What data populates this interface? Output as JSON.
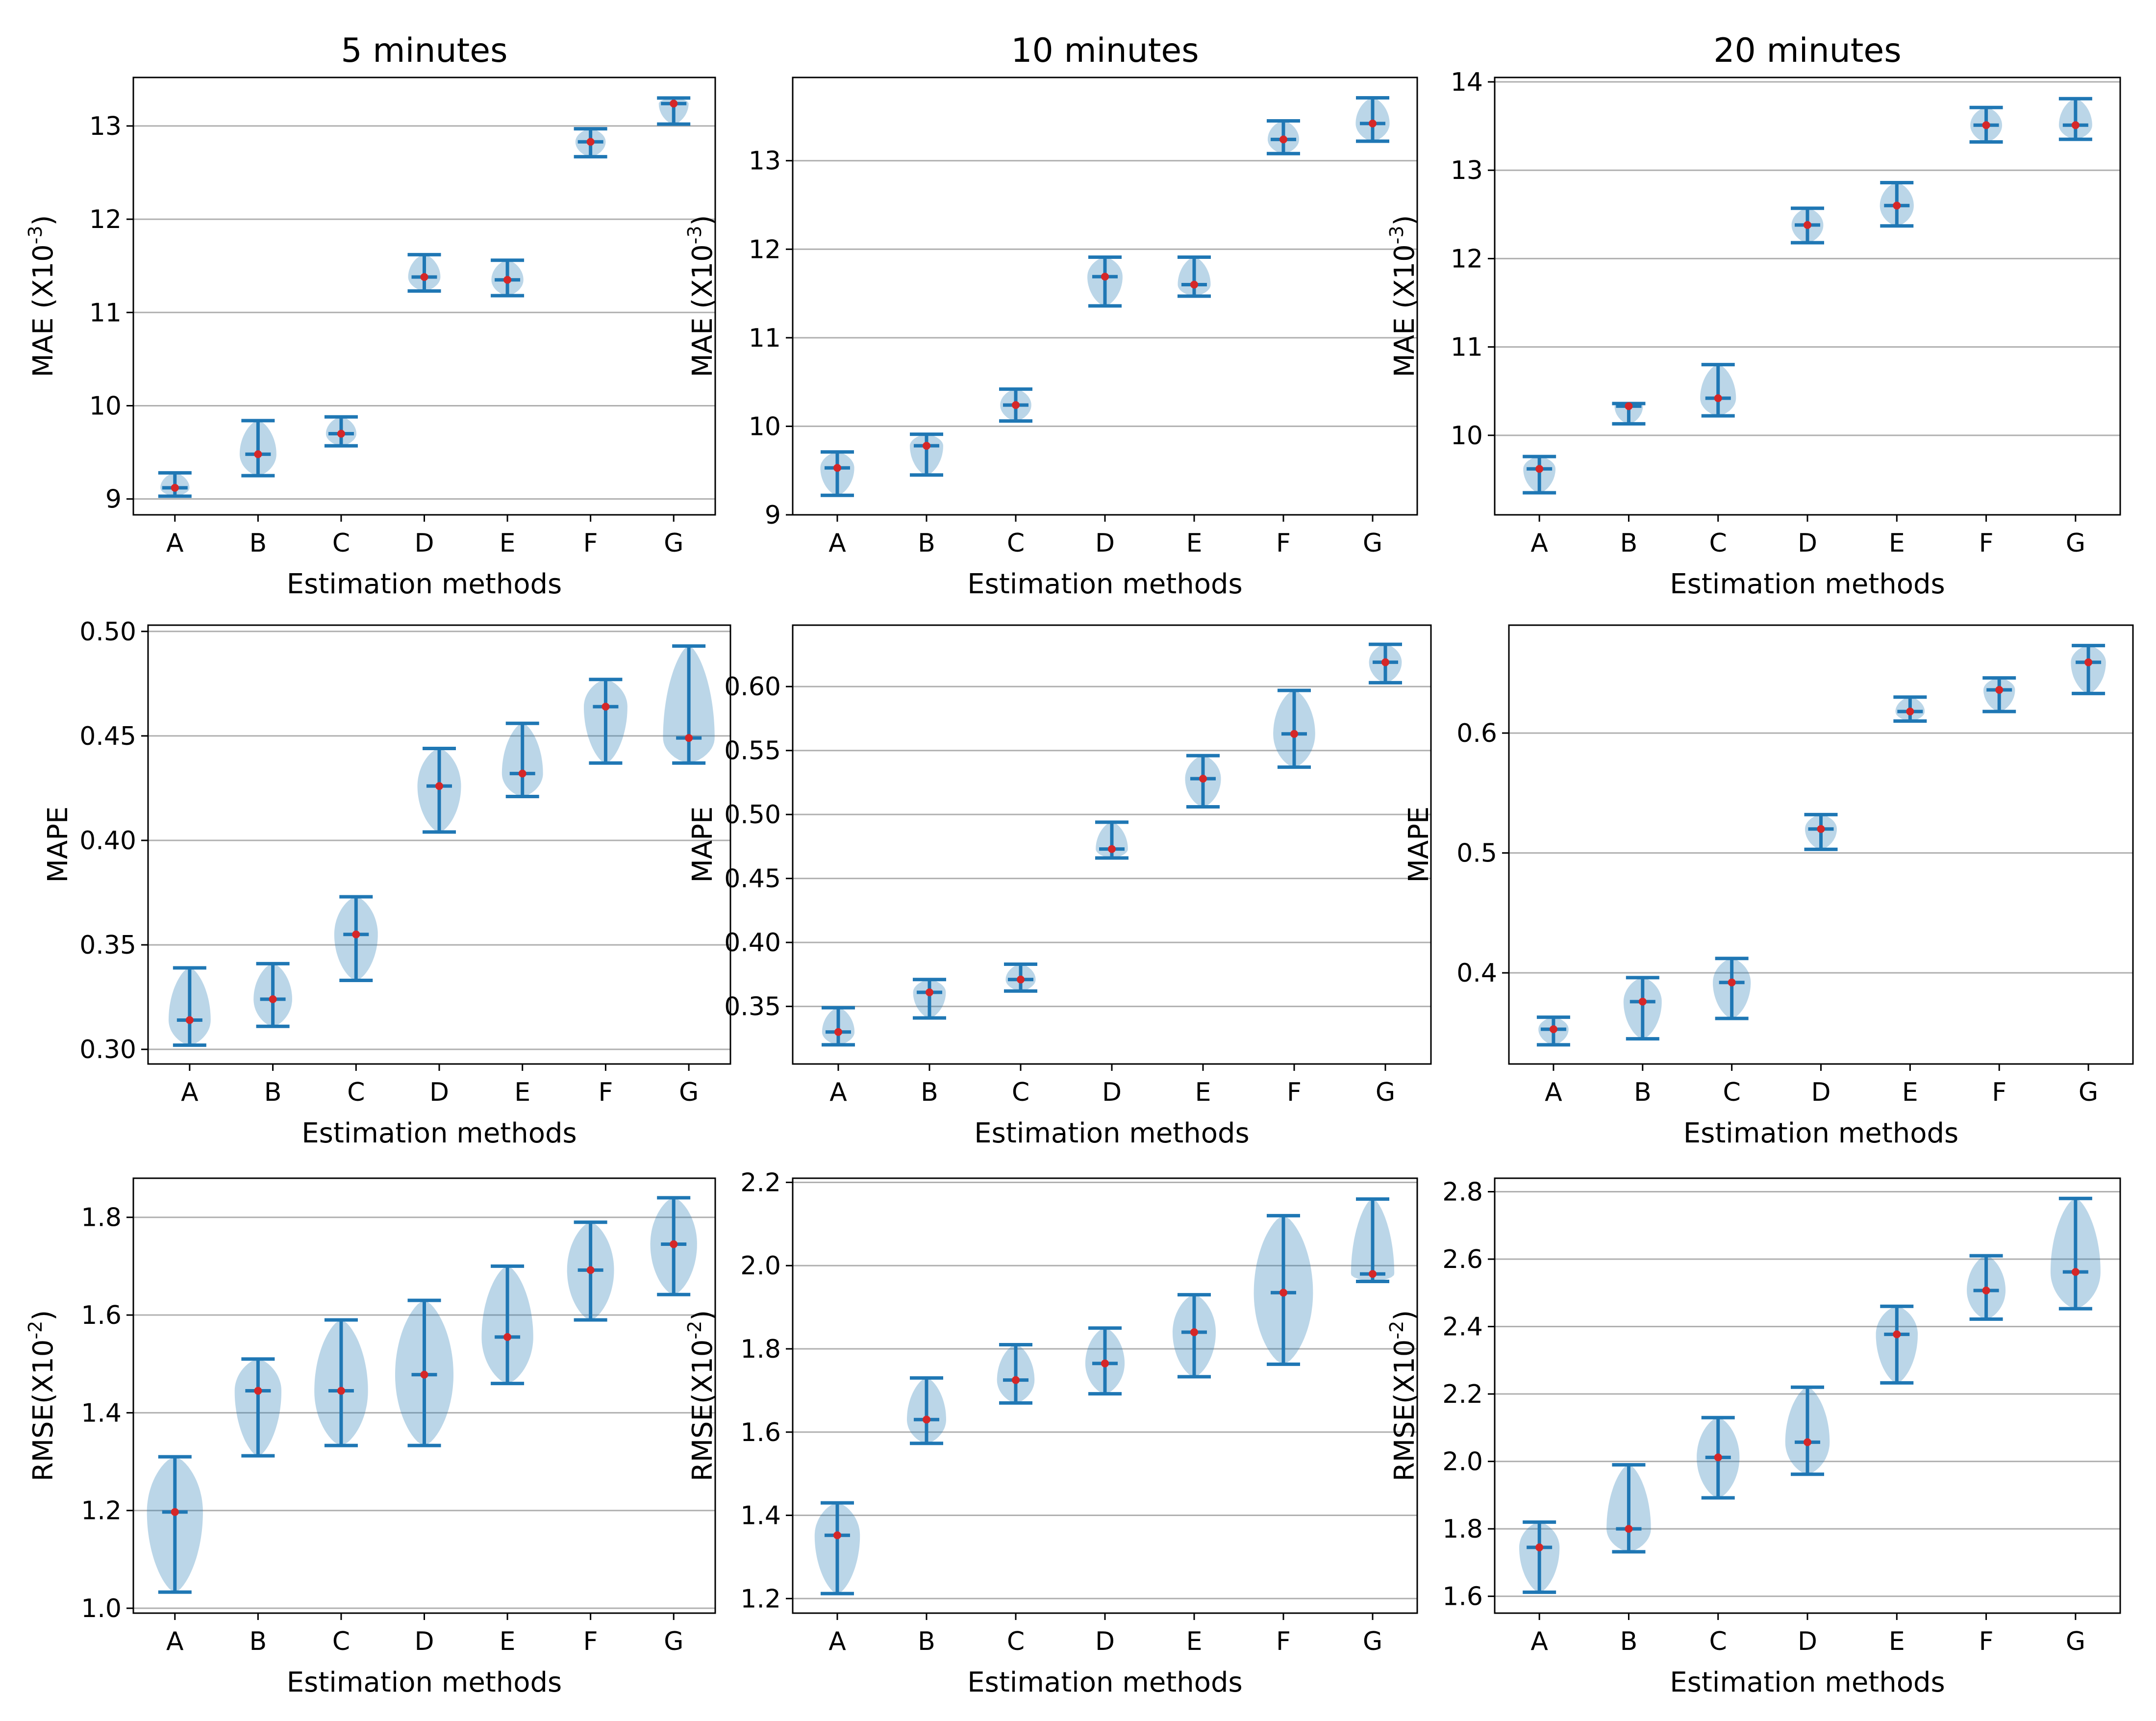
{
  "colors": {
    "violin": "#1f77b4",
    "median_dot": "#d62728",
    "grid": "#b0b0b0"
  },
  "chart_data": [
    {
      "type": "violin",
      "id": "mae-5",
      "title": "5 minutes",
      "xlabel": "Estimation methods",
      "ylabel": "MAE (X10",
      "ylabel_exp": "-3",
      "ylabel_suffix": ")",
      "categories": [
        "A",
        "B",
        "C",
        "D",
        "E",
        "F",
        "G"
      ],
      "yticks": [
        9,
        10,
        11,
        12,
        13
      ],
      "ytick_labels": [
        "9",
        "10",
        "11",
        "12",
        "13"
      ],
      "ylim": [
        8.83,
        13.52
      ],
      "median": [
        9.12,
        9.48,
        9.7,
        11.38,
        11.35,
        12.83,
        13.24
      ],
      "min": [
        9.03,
        9.25,
        9.57,
        11.23,
        11.18,
        12.67,
        13.02
      ],
      "max": [
        9.28,
        9.84,
        9.88,
        11.62,
        11.56,
        12.97,
        13.3
      ]
    },
    {
      "type": "violin",
      "id": "mae-10",
      "title": "10 minutes",
      "xlabel": "Estimation methods",
      "ylabel": "MAE (X10",
      "ylabel_exp": "-3",
      "ylabel_suffix": ")",
      "categories": [
        "A",
        "B",
        "C",
        "D",
        "E",
        "F",
        "G"
      ],
      "yticks": [
        9,
        10,
        11,
        12,
        13
      ],
      "ytick_labels": [
        "9",
        "10",
        "11",
        "12",
        "13"
      ],
      "ylim": [
        9.0,
        13.94
      ],
      "median": [
        9.53,
        9.78,
        10.24,
        11.69,
        11.6,
        13.24,
        13.42
      ],
      "min": [
        9.22,
        9.45,
        10.06,
        11.36,
        11.47,
        13.08,
        13.22
      ],
      "max": [
        9.71,
        9.91,
        10.42,
        11.91,
        11.91,
        13.45,
        13.71
      ]
    },
    {
      "type": "violin",
      "id": "mae-20",
      "title": "20 minutes",
      "xlabel": "Estimation methods",
      "ylabel": "MAE (X10",
      "ylabel_exp": "-3",
      "ylabel_suffix": ")",
      "categories": [
        "A",
        "B",
        "C",
        "D",
        "E",
        "F",
        "G"
      ],
      "yticks": [
        10,
        11,
        12,
        13,
        14
      ],
      "ytick_labels": [
        "10",
        "11",
        "12",
        "13",
        "14"
      ],
      "ylim": [
        9.1,
        14.05
      ],
      "median": [
        9.62,
        10.33,
        10.42,
        12.38,
        12.6,
        13.51,
        13.51
      ],
      "min": [
        9.35,
        10.13,
        10.22,
        12.18,
        12.37,
        13.32,
        13.35
      ],
      "max": [
        9.76,
        10.36,
        10.8,
        12.57,
        12.86,
        13.71,
        13.81
      ]
    },
    {
      "type": "violin",
      "id": "mape-5",
      "title": "",
      "xlabel": "Estimation methods",
      "ylabel": "MAPE",
      "ylabel_exp": "",
      "ylabel_suffix": "",
      "categories": [
        "A",
        "B",
        "C",
        "D",
        "E",
        "F",
        "G"
      ],
      "yticks": [
        0.3,
        0.35,
        0.4,
        0.45,
        0.5
      ],
      "ytick_labels": [
        "0.30",
        "0.35",
        "0.40",
        "0.45",
        "0.50"
      ],
      "ylim": [
        0.293,
        0.503
      ],
      "median": [
        0.314,
        0.324,
        0.355,
        0.426,
        0.432,
        0.464,
        0.449
      ],
      "min": [
        0.302,
        0.311,
        0.333,
        0.404,
        0.421,
        0.437,
        0.437
      ],
      "max": [
        0.339,
        0.341,
        0.373,
        0.444,
        0.456,
        0.477,
        0.493
      ]
    },
    {
      "type": "violin",
      "id": "mape-10",
      "title": "",
      "xlabel": "Estimation methods",
      "ylabel": "MAPE",
      "ylabel_exp": "",
      "ylabel_suffix": "",
      "categories": [
        "A",
        "B",
        "C",
        "D",
        "E",
        "F",
        "G"
      ],
      "yticks": [
        0.35,
        0.4,
        0.45,
        0.5,
        0.55,
        0.6
      ],
      "ytick_labels": [
        "0.35",
        "0.40",
        "0.45",
        "0.50",
        "0.55",
        "0.60"
      ],
      "ylim": [
        0.305,
        0.648
      ],
      "median": [
        0.33,
        0.361,
        0.371,
        0.473,
        0.528,
        0.563,
        0.619
      ],
      "min": [
        0.32,
        0.341,
        0.362,
        0.466,
        0.506,
        0.537,
        0.603
      ],
      "max": [
        0.349,
        0.371,
        0.383,
        0.494,
        0.546,
        0.597,
        0.633
      ]
    },
    {
      "type": "violin",
      "id": "mape-20",
      "title": "",
      "xlabel": "Estimation methods",
      "ylabel": "MAPE",
      "ylabel_exp": "",
      "ylabel_suffix": "",
      "categories": [
        "A",
        "B",
        "C",
        "D",
        "E",
        "F",
        "G"
      ],
      "yticks": [
        0.4,
        0.5,
        0.6
      ],
      "ytick_labels": [
        "0.4",
        "0.5",
        "0.6"
      ],
      "ylim": [
        0.324,
        0.69
      ],
      "median": [
        0.353,
        0.376,
        0.392,
        0.52,
        0.618,
        0.636,
        0.659
      ],
      "min": [
        0.34,
        0.345,
        0.362,
        0.503,
        0.61,
        0.618,
        0.633
      ],
      "max": [
        0.363,
        0.396,
        0.412,
        0.532,
        0.63,
        0.646,
        0.673
      ]
    },
    {
      "type": "violin",
      "id": "rmse-5",
      "title": "",
      "xlabel": "Estimation methods",
      "ylabel": "RMSE(X10",
      "ylabel_exp": "-2",
      "ylabel_suffix": ")",
      "categories": [
        "A",
        "B",
        "C",
        "D",
        "E",
        "F",
        "G"
      ],
      "yticks": [
        1.0,
        1.2,
        1.4,
        1.6,
        1.8
      ],
      "ytick_labels": [
        "1.0",
        "1.2",
        "1.4",
        "1.6",
        "1.8"
      ],
      "ylim": [
        0.99,
        1.88
      ],
      "median": [
        1.197,
        1.445,
        1.445,
        1.478,
        1.555,
        1.692,
        1.745
      ],
      "min": [
        1.033,
        1.312,
        1.333,
        1.333,
        1.46,
        1.59,
        1.642
      ],
      "max": [
        1.31,
        1.51,
        1.59,
        1.63,
        1.7,
        1.79,
        1.84
      ]
    },
    {
      "type": "violin",
      "id": "rmse-10",
      "title": "",
      "xlabel": "Estimation methods",
      "ylabel": "RMSE(X10",
      "ylabel_exp": "-2",
      "ylabel_suffix": ")",
      "categories": [
        "A",
        "B",
        "C",
        "D",
        "E",
        "F",
        "G"
      ],
      "yticks": [
        1.2,
        1.4,
        1.6,
        1.8,
        2.0,
        2.2
      ],
      "ytick_labels": [
        "1.2",
        "1.4",
        "1.6",
        "1.8",
        "2.0",
        "2.2"
      ],
      "ylim": [
        1.165,
        2.21
      ],
      "median": [
        1.352,
        1.63,
        1.725,
        1.765,
        1.84,
        1.935,
        1.98
      ],
      "min": [
        1.212,
        1.573,
        1.67,
        1.692,
        1.733,
        1.763,
        1.962
      ],
      "max": [
        1.43,
        1.73,
        1.81,
        1.85,
        1.93,
        2.12,
        2.16
      ]
    },
    {
      "type": "violin",
      "id": "rmse-20",
      "title": "",
      "xlabel": "Estimation methods",
      "ylabel": "RMSE(X10",
      "ylabel_exp": "-2",
      "ylabel_suffix": ")",
      "categories": [
        "A",
        "B",
        "C",
        "D",
        "E",
        "F",
        "G"
      ],
      "yticks": [
        1.6,
        1.8,
        2.0,
        2.2,
        2.4,
        2.6,
        2.8
      ],
      "ytick_labels": [
        "1.6",
        "1.8",
        "2.0",
        "2.2",
        "2.4",
        "2.6",
        "2.8"
      ],
      "ylim": [
        1.55,
        2.84
      ],
      "median": [
        1.745,
        1.8,
        2.012,
        2.057,
        2.377,
        2.507,
        2.562
      ],
      "min": [
        1.612,
        1.732,
        1.892,
        1.962,
        2.233,
        2.422,
        2.453
      ],
      "max": [
        1.82,
        1.99,
        2.13,
        2.22,
        2.46,
        2.61,
        2.78
      ]
    }
  ]
}
